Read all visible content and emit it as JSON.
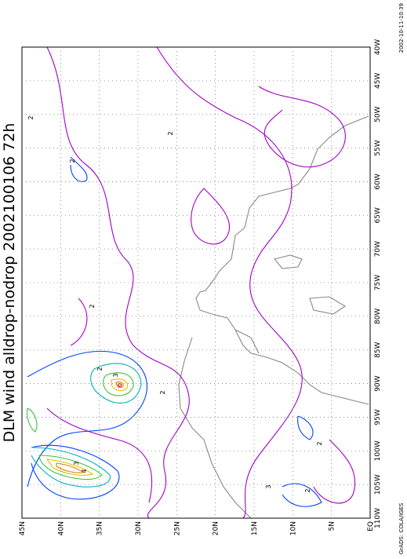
{
  "title": "DLM wind alldrop-nodrop 2002100106  72h",
  "latitude_labels": [
    "45N",
    "40N",
    "35N",
    "30N",
    "25N",
    "20N",
    "15N",
    "10N",
    "5N",
    "EQ"
  ],
  "longitude_labels": [
    "40W",
    "45W",
    "50W",
    "55W",
    "60W",
    "65W",
    "70W",
    "75W",
    "80W",
    "85W",
    "90W",
    "95W",
    "100W",
    "105W",
    "110W"
  ],
  "footer": "GrADS: COLA/IGES",
  "timestamp": "2002-10-11-10:39",
  "contour_labels": [
    "2",
    "2",
    "3",
    "4",
    "2",
    "3",
    "2",
    "2",
    "2",
    "3",
    "2",
    "2"
  ]
}
